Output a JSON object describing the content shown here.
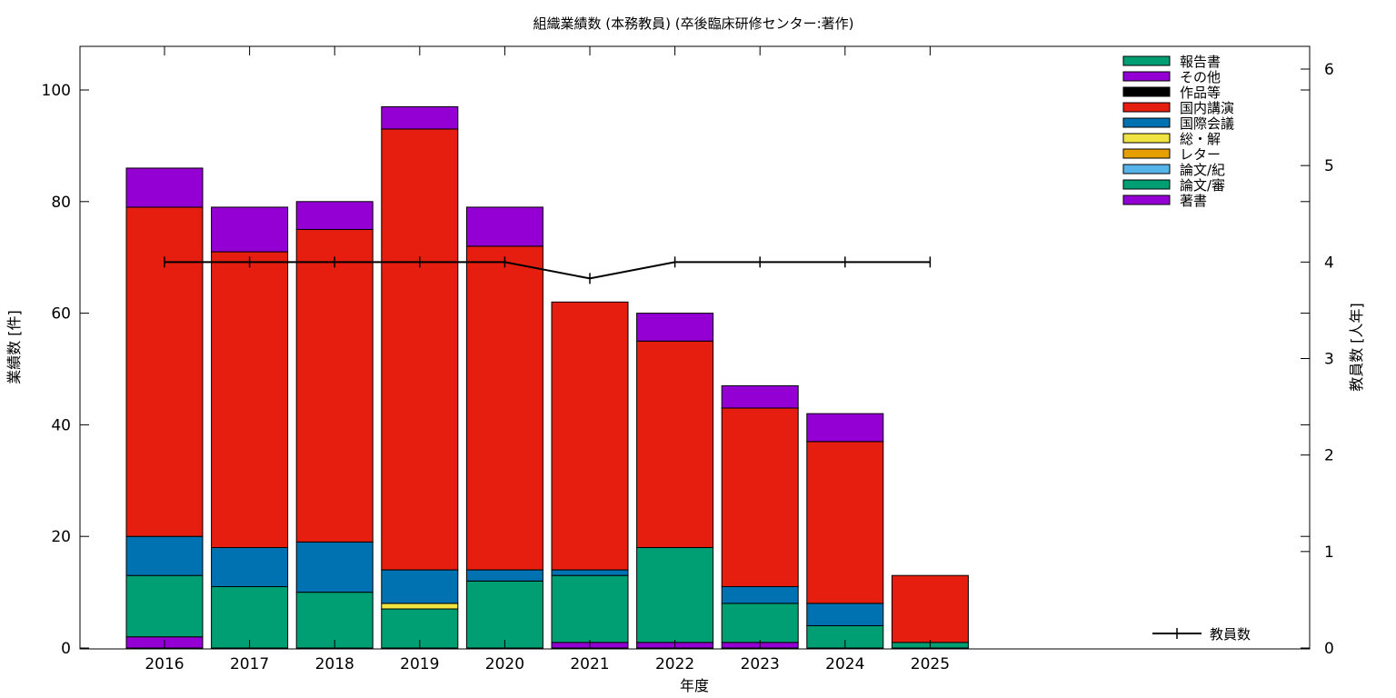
{
  "chart_data": {
    "type": "bar",
    "stacked": true,
    "title": "組織業績数 (本務教員) (卒後臨床研修センター:著作)",
    "xlabel": "年度",
    "ylabel": "業績数 [件]",
    "y2label": "教員数 [人年]",
    "categories": [
      "2016",
      "2017",
      "2018",
      "2019",
      "2020",
      "2021",
      "2022",
      "2023",
      "2024",
      "2025"
    ],
    "ylim": [
      0,
      108
    ],
    "yticks": [
      0,
      20,
      40,
      60,
      80,
      100
    ],
    "y2lim": [
      0,
      6.2
    ],
    "y2ticks": [
      0,
      1,
      2,
      3,
      4,
      5,
      6
    ],
    "grid": false,
    "legend_position": "top-right",
    "series": [
      {
        "name": "著書",
        "color": "#9400d3",
        "values": [
          2,
          0,
          0,
          0,
          0,
          1,
          1,
          1,
          0,
          0
        ]
      },
      {
        "name": "論文/審",
        "color": "#009e73",
        "values": [
          11,
          11,
          10,
          7,
          12,
          12,
          17,
          7,
          4,
          1
        ]
      },
      {
        "name": "論文/紀",
        "color": "#56b4e9",
        "values": [
          0,
          0,
          0,
          0,
          0,
          0,
          0,
          0,
          0,
          0
        ]
      },
      {
        "name": "レター",
        "color": "#e69f00",
        "values": [
          0,
          0,
          0,
          0,
          0,
          0,
          0,
          0,
          0,
          0
        ]
      },
      {
        "name": "総・解",
        "color": "#f0e442",
        "values": [
          0,
          0,
          0,
          1,
          0,
          0,
          0,
          0,
          0,
          0
        ]
      },
      {
        "name": "国際会議",
        "color": "#0072b2",
        "values": [
          7,
          7,
          9,
          6,
          2,
          1,
          0,
          3,
          4,
          0
        ]
      },
      {
        "name": "国内講演",
        "color": "#e51e10",
        "values": [
          59,
          53,
          56,
          79,
          58,
          48,
          37,
          32,
          29,
          12
        ]
      },
      {
        "name": "作品等",
        "color": "#000000",
        "values": [
          0,
          0,
          0,
          0,
          0,
          0,
          0,
          0,
          0,
          0
        ]
      },
      {
        "name": "その他",
        "color": "#9400d3",
        "values": [
          7,
          8,
          5,
          4,
          7,
          0,
          5,
          4,
          5,
          0
        ]
      },
      {
        "name": "報告書",
        "color": "#009e73",
        "values": [
          0,
          0,
          0,
          0,
          0,
          0,
          0,
          0,
          0,
          0
        ]
      }
    ],
    "legend_order": [
      "報告書",
      "その他",
      "作品等",
      "国内講演",
      "国際会議",
      "総・解",
      "レター",
      "論文/紀",
      "論文/審",
      "著書"
    ],
    "line_series": {
      "name": "教員数",
      "color": "#000000",
      "axis": "y2",
      "values": [
        4,
        4,
        4,
        4,
        4,
        3.83,
        4,
        4,
        4,
        4
      ]
    }
  }
}
